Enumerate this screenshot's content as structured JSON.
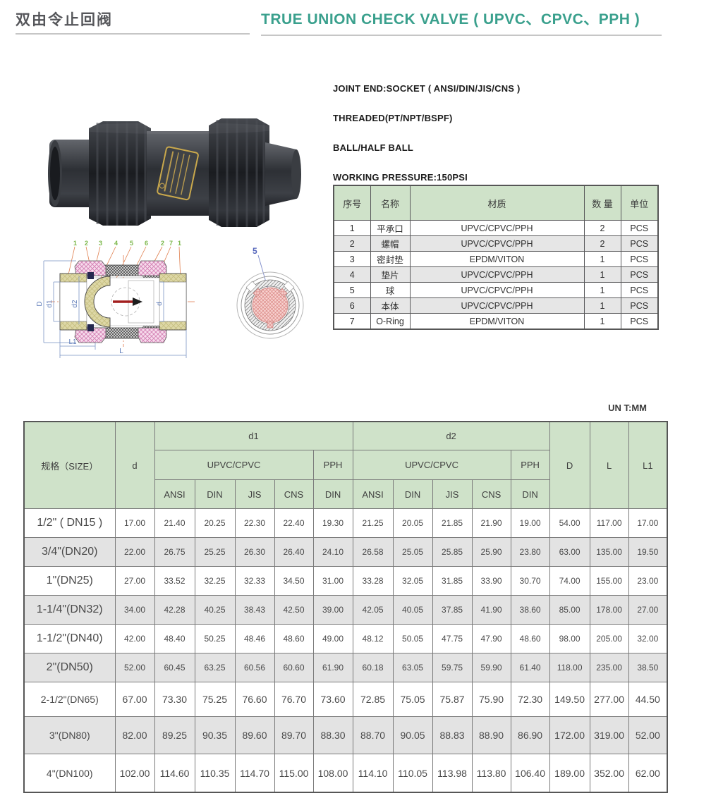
{
  "page": {
    "title_cn": "双由令止回阀",
    "title_en": "TRUE UNION CHECK VALVE ( UPVC、CPVC、PPH )",
    "unit_note": "UN T:MM"
  },
  "specs": {
    "lines": [
      "JOINT END:SOCKET ( ANSI/DIN/JIS/CNS )",
      "THREADED(PT/NPT/BSPF)",
      "BALL/HALF BALL",
      "WORKING PRESSURE:150PSI"
    ]
  },
  "parts_table": {
    "headers": [
      "序号",
      "名称",
      "材质",
      "数 量",
      "单位"
    ],
    "rows": [
      [
        "1",
        "平承口",
        "UPVC/CPVC/PPH",
        "2",
        "PCS"
      ],
      [
        "2",
        "螺帽",
        "UPVC/CPVC/PPH",
        "2",
        "PCS"
      ],
      [
        "3",
        "密封垫",
        "EPDM/VITON",
        "1",
        "PCS"
      ],
      [
        "4",
        "垫片",
        "UPVC/CPVC/PPH",
        "1",
        "PCS"
      ],
      [
        "5",
        "球",
        "UPVC/CPVC/PPH",
        "1",
        "PCS"
      ],
      [
        "6",
        "本体",
        "UPVC/CPVC/PPH",
        "1",
        "PCS"
      ],
      [
        "7",
        "O-Ring",
        "EPDM/VITON",
        "1",
        "PCS"
      ]
    ]
  },
  "drawing": {
    "callouts": [
      "1",
      "2",
      "3",
      "4",
      "5",
      "6",
      "2",
      "7",
      "1"
    ],
    "dims": {
      "D": "D",
      "d1": "d1",
      "d2": "d2",
      "d": "d",
      "L1": "L1",
      "L": "L"
    },
    "end_view_callout": "5"
  },
  "dim_table": {
    "size_header": "规格（SIZE）",
    "col_d": "d",
    "group_d1": "d1",
    "group_d2": "d2",
    "col_D": "D",
    "col_L": "L",
    "col_L1": "L1",
    "material_upvc_cpvc": "UPVC/CPVC",
    "material_pph": "PPH",
    "standards": [
      "ANSI",
      "DIN",
      "JIS",
      "CNS",
      "DIN"
    ],
    "rows": [
      {
        "size": "1/2\" ( DN15 )",
        "values": [
          "17.00",
          "21.40",
          "20.25",
          "22.30",
          "22.40",
          "19.30",
          "21.25",
          "20.05",
          "21.85",
          "21.90",
          "19.00",
          "54.00",
          "117.00",
          "17.00"
        ]
      },
      {
        "size": "3/4\"(DN20)",
        "values": [
          "22.00",
          "26.75",
          "25.25",
          "26.30",
          "26.40",
          "24.10",
          "26.58",
          "25.05",
          "25.85",
          "25.90",
          "23.80",
          "63.00",
          "135.00",
          "19.50"
        ]
      },
      {
        "size": "1\"(DN25)",
        "values": [
          "27.00",
          "33.52",
          "32.25",
          "32.33",
          "34.50",
          "31.00",
          "33.28",
          "32.05",
          "31.85",
          "33.90",
          "30.70",
          "74.00",
          "155.00",
          "23.00"
        ]
      },
      {
        "size": "1-1/4\"(DN32)",
        "values": [
          "34.00",
          "42.28",
          "40.25",
          "38.43",
          "42.50",
          "39.00",
          "42.05",
          "40.05",
          "37.85",
          "41.90",
          "38.60",
          "85.00",
          "178.00",
          "27.00"
        ]
      },
      {
        "size": "1-1/2\"(DN40)",
        "values": [
          "42.00",
          "48.40",
          "50.25",
          "48.46",
          "48.60",
          "49.00",
          "48.12",
          "50.05",
          "47.75",
          "47.90",
          "48.60",
          "98.00",
          "205.00",
          "32.00"
        ]
      },
      {
        "size": "2\"(DN50)",
        "values": [
          "52.00",
          "60.45",
          "63.25",
          "60.56",
          "60.60",
          "61.90",
          "60.18",
          "63.05",
          "59.75",
          "59.90",
          "61.40",
          "118.00",
          "235.00",
          "38.50"
        ]
      },
      {
        "size": "2-1/2\"(DN65)",
        "values": [
          "67.00",
          "73.30",
          "75.25",
          "76.60",
          "76.70",
          "73.60",
          "72.85",
          "75.05",
          "75.87",
          "75.90",
          "72.30",
          "149.50",
          "277.00",
          "44.50"
        ]
      },
      {
        "size": "3\"(DN80)",
        "values": [
          "82.00",
          "89.25",
          "90.35",
          "89.60",
          "89.70",
          "88.30",
          "88.70",
          "90.05",
          "88.83",
          "88.90",
          "86.90",
          "172.00",
          "319.00",
          "52.00"
        ]
      },
      {
        "size": "4\"(DN100)",
        "values": [
          "102.00",
          "114.60",
          "110.35",
          "114.70",
          "115.00",
          "108.00",
          "114.10",
          "110.05",
          "113.98",
          "113.80",
          "106.40",
          "189.00",
          "352.00",
          "62.00"
        ]
      }
    ]
  },
  "colors": {
    "accent_teal": "#3aa08d",
    "table_header_green": "#cfe2c9",
    "row_alt_gray": "#e6e6e6"
  }
}
